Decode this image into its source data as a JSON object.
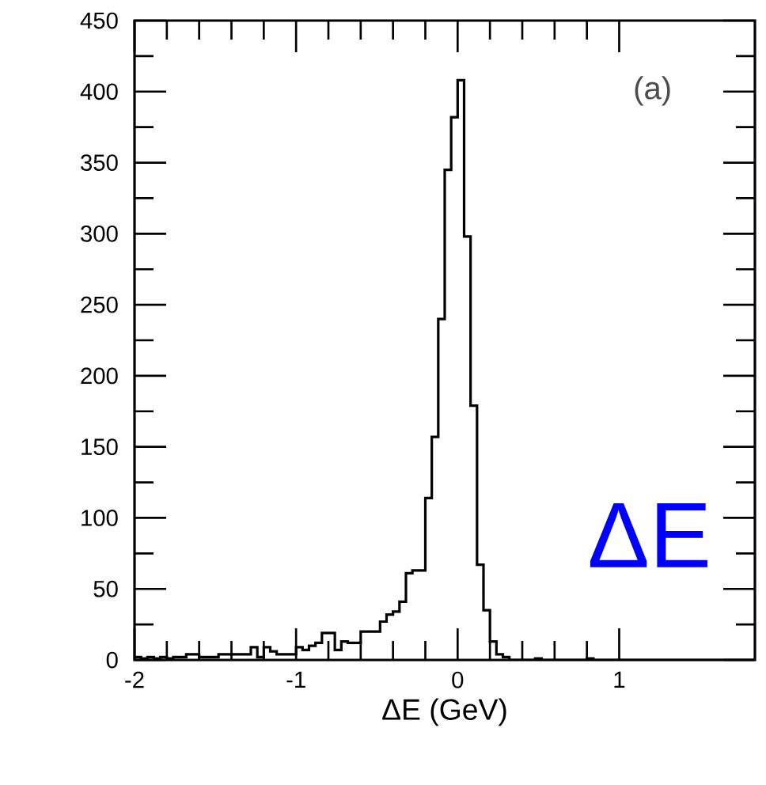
{
  "chart_data": {
    "type": "histogram",
    "xlabel": "ΔE (GeV)",
    "annotations": [
      "(a)",
      "ΔE"
    ],
    "bins": [
      -2.0,
      -1.96,
      -1.92,
      -1.88,
      -1.84,
      -1.8,
      -1.76,
      -1.72,
      -1.68,
      -1.64,
      -1.6,
      -1.56,
      -1.52,
      -1.48,
      -1.44,
      -1.4,
      -1.36,
      -1.32,
      -1.28,
      -1.24,
      -1.2,
      -1.16,
      -1.12,
      -1.08,
      -1.04,
      -1.0,
      -0.96,
      -0.92,
      -0.88,
      -0.84,
      -0.8,
      -0.76,
      -0.72,
      -0.68,
      -0.64,
      -0.6,
      -0.56,
      -0.52,
      -0.48,
      -0.44,
      -0.4,
      -0.36,
      -0.32,
      -0.28,
      -0.24,
      -0.2,
      -0.16,
      -0.12,
      -0.08,
      -0.04,
      0.0,
      0.04,
      0.08,
      0.12,
      0.16,
      0.2,
      0.24,
      0.28,
      0.32,
      0.36,
      0.4,
      0.44,
      0.48,
      0.52,
      0.56,
      0.6,
      0.64,
      0.68,
      0.72,
      0.76,
      0.8,
      0.84,
      0.88,
      0.92,
      0.96,
      1.0,
      1.04,
      1.08,
      1.12,
      1.16,
      1.2,
      1.24,
      1.28,
      1.32,
      1.36,
      1.4,
      1.44,
      1.48,
      1.52,
      1.56,
      1.6,
      1.64,
      1.68,
      1.72,
      1.76,
      1.8,
      1.84
    ],
    "values": [
      2,
      1,
      2,
      1,
      2,
      1,
      2,
      2,
      4,
      4,
      2,
      2,
      2,
      4,
      4,
      4,
      4,
      4,
      9,
      2,
      9,
      6,
      4,
      4,
      4,
      9,
      7,
      10,
      12,
      19,
      19,
      7,
      13,
      12,
      12,
      20,
      20,
      20,
      27,
      32,
      34,
      41,
      61,
      63,
      63,
      114,
      157,
      240,
      345,
      382,
      408,
      298,
      179,
      67,
      35,
      13,
      4,
      2,
      0,
      0,
      0,
      0,
      1,
      0,
      0,
      0,
      0,
      0,
      0,
      0,
      1,
      0,
      0,
      0,
      0,
      0,
      0,
      0,
      0,
      0,
      0,
      0,
      0,
      0,
      0,
      0,
      0,
      0,
      0,
      0,
      0,
      0,
      0,
      0,
      0,
      0
    ],
    "color": "#000000",
    "xlim": [
      -2,
      1.84
    ],
    "ylim": [
      0,
      450
    ],
    "xticks": [
      -2,
      -1,
      0,
      1
    ],
    "yticks": [
      0,
      50,
      100,
      150,
      200,
      250,
      300,
      350,
      400,
      450
    ]
  }
}
